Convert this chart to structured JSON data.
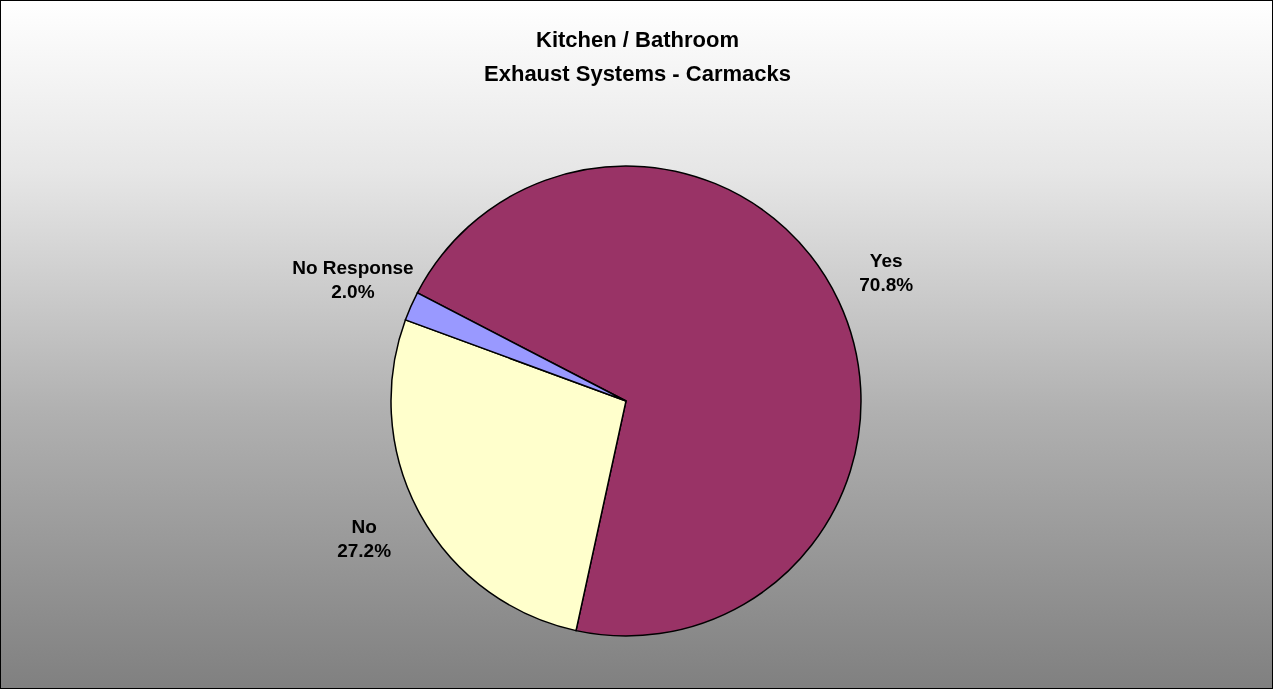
{
  "chart_data": {
    "type": "pie",
    "title": "Kitchen / Bathroom\nExhaust Systems - Carmacks",
    "categories": [
      "Yes",
      "No",
      "No Response"
    ],
    "values": [
      70.8,
      27.2,
      2.0
    ],
    "value_labels": [
      "70.8%",
      "27.2%",
      "2.0%"
    ],
    "colors": [
      "#993366",
      "#ffffcc",
      "#9999ff"
    ],
    "legend": false
  }
}
